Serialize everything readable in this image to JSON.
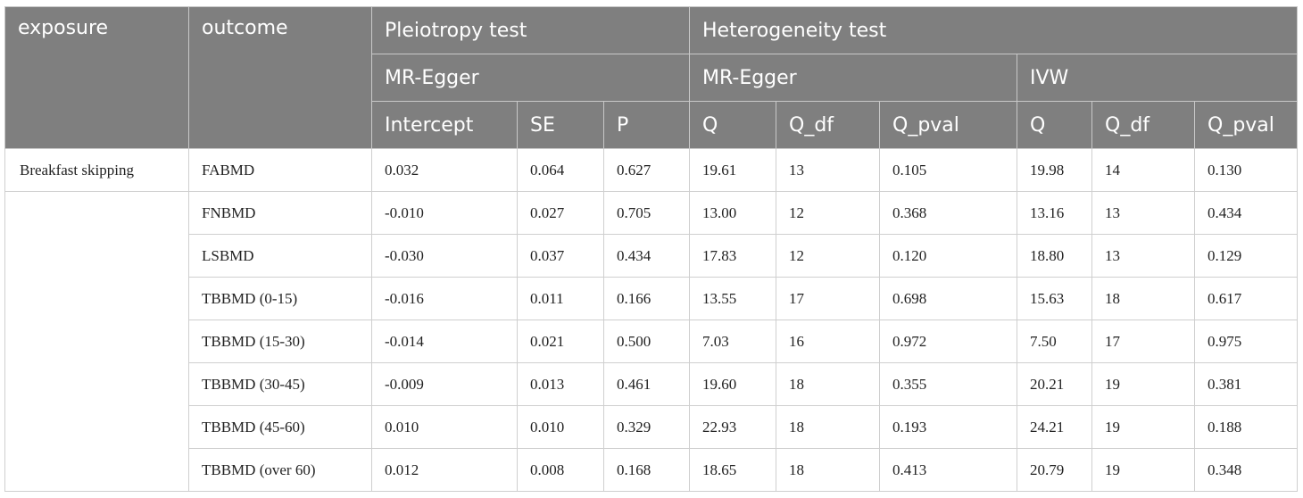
{
  "header": {
    "exposure": "exposure",
    "outcome": "outcome",
    "pleiotropy": "Pleiotropy test",
    "heterogeneity": "Heterogeneity test",
    "mr_egger_a": "MR-Egger",
    "mr_egger_b": "MR-Egger",
    "ivw": "IVW",
    "cols": [
      "Intercept",
      "SE",
      "P",
      "Q",
      "Q_df",
      "Q_pval",
      "Q",
      "Q_df",
      "Q_pval"
    ]
  },
  "rows": [
    {
      "exposure": "Breakfast skipping",
      "outcome": "FABMD",
      "cells": [
        "0.032",
        "0.064",
        "0.627",
        "19.61",
        "13",
        "0.105",
        "19.98",
        "14",
        "0.130"
      ]
    },
    {
      "exposure": "",
      "outcome": "FNBMD",
      "cells": [
        "-0.010",
        "0.027",
        "0.705",
        "13.00",
        "12",
        "0.368",
        "13.16",
        "13",
        "0.434"
      ]
    },
    {
      "exposure": "",
      "outcome": "LSBMD",
      "cells": [
        "-0.030",
        "0.037",
        "0.434",
        "17.83",
        "12",
        "0.120",
        "18.80",
        "13",
        "0.129"
      ]
    },
    {
      "exposure": "",
      "outcome": "TBBMD (0-15)",
      "cells": [
        "-0.016",
        "0.011",
        "0.166",
        "13.55",
        "17",
        "0.698",
        "15.63",
        "18",
        "0.617"
      ]
    },
    {
      "exposure": "",
      "outcome": "TBBMD (15-30)",
      "cells": [
        "-0.014",
        "0.021",
        "0.500",
        "7.03",
        "16",
        "0.972",
        "7.50",
        "17",
        "0.975"
      ]
    },
    {
      "exposure": "",
      "outcome": "TBBMD (30-45)",
      "cells": [
        "-0.009",
        "0.013",
        "0.461",
        "19.60",
        "18",
        "0.355",
        "20.21",
        "19",
        "0.381"
      ]
    },
    {
      "exposure": "",
      "outcome": "TBBMD (45-60)",
      "cells": [
        "0.010",
        "0.010",
        "0.329",
        "22.93",
        "18",
        "0.193",
        "24.21",
        "19",
        "0.188"
      ]
    },
    {
      "exposure": "",
      "outcome": "TBBMD (over 60)",
      "cells": [
        "0.012",
        "0.008",
        "0.168",
        "18.65",
        "18",
        "0.413",
        "20.79",
        "19",
        "0.348"
      ]
    }
  ]
}
